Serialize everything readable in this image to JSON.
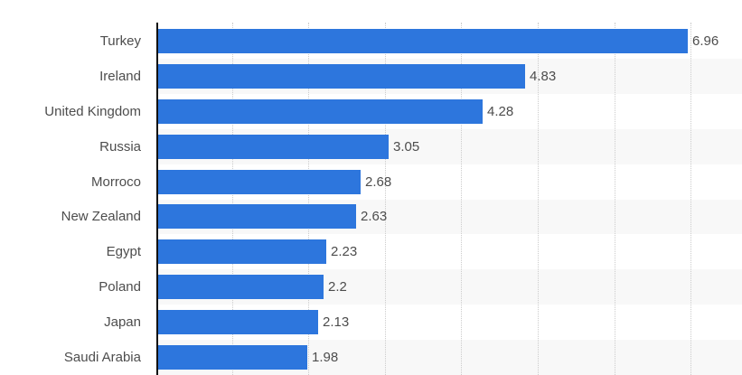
{
  "colors": {
    "bar": "#2d76dd",
    "row_stripe": "#f8f8f8",
    "gridline": "#cccccc",
    "axis_line": "#111111",
    "label_text": "#4d4d4d",
    "background": "#ffffff"
  },
  "chart_data": {
    "type": "bar",
    "orientation": "horizontal",
    "title": "",
    "xlabel": "",
    "ylabel": "",
    "categories": [
      "Turkey",
      "Ireland",
      "United Kingdom",
      "Russia",
      "Morroco",
      "New Zealand",
      "Egypt",
      "Poland",
      "Japan",
      "Saudi Arabia"
    ],
    "values": [
      6.96,
      4.83,
      4.28,
      3.05,
      2.68,
      2.63,
      2.23,
      2.2,
      2.13,
      1.98
    ],
    "value_labels": [
      "6.96",
      "4.83",
      "4.28",
      "3.05",
      "2.68",
      "2.63",
      "2.23",
      "2.2",
      "2.13",
      "1.98"
    ],
    "xlim": [
      0,
      7.64
    ],
    "gridlines": [
      1,
      2,
      3,
      4,
      5,
      6,
      7
    ],
    "grid_style": "vertical-dotted",
    "legend": "none",
    "row_stripe_pattern": "odd-rows-striped",
    "bars_sorted": "descending"
  }
}
